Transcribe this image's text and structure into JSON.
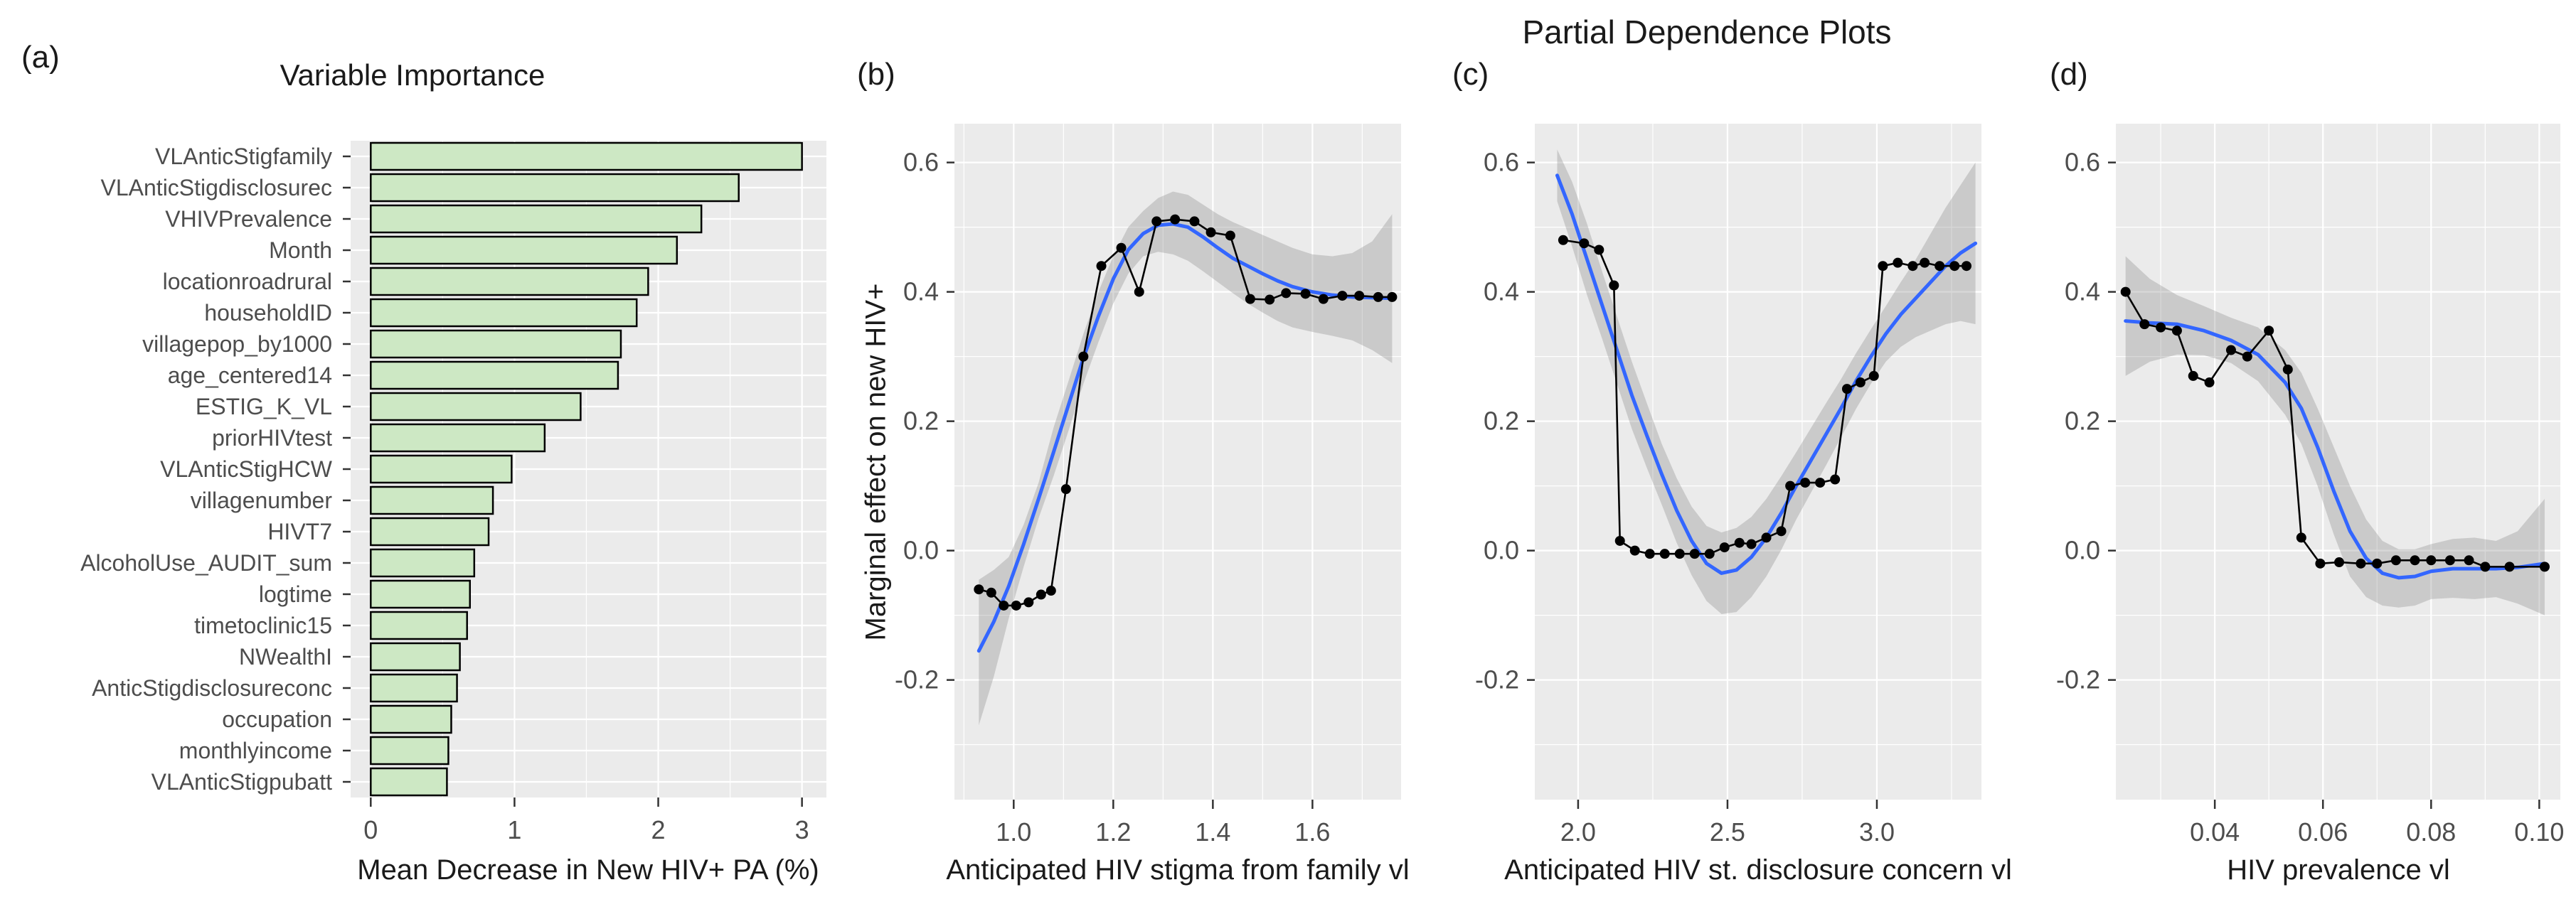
{
  "figure": {
    "title": "Partial Dependence Plots",
    "panel_letters": {
      "a": "(a)",
      "b": "(b)",
      "c": "(c)",
      "d": "(d)"
    }
  },
  "colors": {
    "panel_bg": "#ebebeb",
    "gridline": "#ffffff",
    "bar_fill": "#cde8c4",
    "bar_stroke": "#000000",
    "data_line": "#000000",
    "smooth_line": "#3366FF",
    "ci_band": "rgba(125,125,125,0.30)",
    "tick_text": "#4d4d4d",
    "tick_mark": "#333333",
    "title_text": "#1a1a1a"
  },
  "chart_data": [
    {
      "id": "a",
      "type": "bar",
      "title": "Variable Importance",
      "xlabel": "Mean Decrease in New HIV+ PA (%)",
      "ylabel": "",
      "orientation": "horizontal",
      "grid": true,
      "xlim": [
        -0.14,
        3.17
      ],
      "x_ticks": [
        0,
        1,
        2,
        3
      ],
      "x_tick_labels": [
        "0",
        "1",
        "2",
        "3"
      ],
      "categories": [
        "VLAnticStigfamily",
        "VLAnticStigdisclosurec",
        "VHIVPrevalence",
        "Month",
        "locationroadrural",
        "householdID",
        "villagepop_by1000",
        "age_centered14",
        "ESTIG_K_VL",
        "priorHIVtest",
        "VLAnticStigHCW",
        "villagenumber",
        "HIVT7",
        "AlcoholUse_AUDIT_sum",
        "logtime",
        "timetoclinic15",
        "NWealthI",
        "AnticStigdisclosureconc",
        "occupation",
        "monthlyincome",
        "VLAnticStigpubatt"
      ],
      "values": [
        3.0,
        2.56,
        2.3,
        2.13,
        1.93,
        1.85,
        1.74,
        1.72,
        1.46,
        1.21,
        0.98,
        0.85,
        0.82,
        0.72,
        0.69,
        0.67,
        0.62,
        0.6,
        0.56,
        0.54,
        0.53
      ]
    },
    {
      "id": "b",
      "type": "line",
      "title": "",
      "xlabel": "Anticipated HIV stigma from family vl",
      "ylabel": "Marginal effect on new HIV+",
      "grid": true,
      "legend": "none",
      "xlim": [
        0.881,
        1.778
      ],
      "ylim": [
        -0.385,
        0.66
      ],
      "x_ticks": [
        1.0,
        1.2,
        1.4,
        1.6
      ],
      "x_tick_labels": [
        "1.0",
        "1.2",
        "1.4",
        "1.6"
      ],
      "y_ticks": [
        -0.2,
        0.0,
        0.2,
        0.4,
        0.6
      ],
      "y_tick_labels": [
        "-0.2",
        "0.0",
        "0.2",
        "0.4",
        "0.6"
      ],
      "series": {
        "partial_dependence": {
          "x": [
            0.93,
            0.955,
            0.98,
            1.005,
            1.03,
            1.055,
            1.075,
            1.105,
            1.14,
            1.176,
            1.216,
            1.252,
            1.287,
            1.324,
            1.363,
            1.396,
            1.435,
            1.475,
            1.514,
            1.547,
            1.586,
            1.622,
            1.66,
            1.694,
            1.732,
            1.76
          ],
          "y": [
            -0.06,
            -0.065,
            -0.085,
            -0.085,
            -0.08,
            -0.068,
            -0.062,
            0.095,
            0.3,
            0.44,
            0.468,
            0.4,
            0.509,
            0.512,
            0.509,
            0.492,
            0.487,
            0.389,
            0.388,
            0.398,
            0.397,
            0.389,
            0.394,
            0.394,
            0.392,
            0.392
          ]
        },
        "smooth": {
          "x": [
            0.93,
            0.96,
            0.99,
            1.02,
            1.05,
            1.08,
            1.11,
            1.14,
            1.17,
            1.2,
            1.23,
            1.26,
            1.29,
            1.32,
            1.35,
            1.38,
            1.41,
            1.44,
            1.47,
            1.5,
            1.53,
            1.56,
            1.6,
            1.64,
            1.68,
            1.72,
            1.76
          ],
          "y": [
            -0.155,
            -0.11,
            -0.055,
            0.01,
            0.08,
            0.152,
            0.225,
            0.298,
            0.362,
            0.42,
            0.465,
            0.49,
            0.503,
            0.505,
            0.5,
            0.485,
            0.468,
            0.452,
            0.44,
            0.428,
            0.417,
            0.408,
            0.4,
            0.395,
            0.392,
            0.391,
            0.39
          ]
        },
        "ci": {
          "x": [
            0.93,
            0.96,
            0.99,
            1.02,
            1.05,
            1.08,
            1.11,
            1.14,
            1.17,
            1.2,
            1.23,
            1.26,
            1.29,
            1.32,
            1.35,
            1.38,
            1.41,
            1.44,
            1.47,
            1.5,
            1.53,
            1.56,
            1.6,
            1.64,
            1.68,
            1.72,
            1.76
          ],
          "upper": [
            -0.045,
            -0.03,
            -0.01,
            0.04,
            0.105,
            0.19,
            0.262,
            0.335,
            0.4,
            0.455,
            0.5,
            0.525,
            0.545,
            0.555,
            0.55,
            0.535,
            0.52,
            0.508,
            0.498,
            0.488,
            0.478,
            0.468,
            0.458,
            0.455,
            0.46,
            0.478,
            0.52
          ],
          "lower": [
            -0.27,
            -0.195,
            -0.105,
            -0.025,
            0.05,
            0.115,
            0.185,
            0.258,
            0.322,
            0.382,
            0.428,
            0.455,
            0.462,
            0.458,
            0.448,
            0.432,
            0.415,
            0.398,
            0.382,
            0.368,
            0.355,
            0.345,
            0.338,
            0.332,
            0.325,
            0.31,
            0.29
          ]
        }
      }
    },
    {
      "id": "c",
      "type": "line",
      "title": "",
      "xlabel": "Anticipated HIV st. disclosure concern vl",
      "ylabel": "",
      "grid": true,
      "legend": "none",
      "xlim": [
        1.855,
        3.35
      ],
      "ylim": [
        -0.385,
        0.66
      ],
      "x_ticks": [
        2.0,
        2.5,
        3.0
      ],
      "x_tick_labels": [
        "2.0",
        "2.5",
        "3.0"
      ],
      "y_ticks": [
        -0.2,
        0.0,
        0.2,
        0.4,
        0.6
      ],
      "y_tick_labels": [
        "-0.2",
        "0.0",
        "0.2",
        "0.4",
        "0.6"
      ],
      "series": {
        "partial_dependence": {
          "x": [
            1.95,
            2.02,
            2.07,
            2.12,
            2.14,
            2.19,
            2.24,
            2.29,
            2.34,
            2.39,
            2.44,
            2.49,
            2.54,
            2.58,
            2.63,
            2.68,
            2.71,
            2.76,
            2.81,
            2.86,
            2.9,
            2.945,
            2.99,
            3.02,
            3.07,
            3.12,
            3.16,
            3.21,
            3.26,
            3.3
          ],
          "y": [
            0.48,
            0.475,
            0.465,
            0.41,
            0.015,
            0.0,
            -0.005,
            -0.005,
            -0.005,
            -0.005,
            -0.005,
            0.005,
            0.012,
            0.01,
            0.02,
            0.03,
            0.1,
            0.105,
            0.105,
            0.11,
            0.25,
            0.26,
            0.27,
            0.44,
            0.445,
            0.44,
            0.445,
            0.44,
            0.44,
            0.44
          ]
        },
        "smooth": {
          "x": [
            1.93,
            1.98,
            2.03,
            2.08,
            2.13,
            2.18,
            2.23,
            2.28,
            2.33,
            2.38,
            2.43,
            2.48,
            2.53,
            2.58,
            2.63,
            2.68,
            2.73,
            2.78,
            2.83,
            2.88,
            2.93,
            2.98,
            3.03,
            3.08,
            3.13,
            3.18,
            3.23,
            3.28,
            3.33
          ],
          "y": [
            0.58,
            0.52,
            0.45,
            0.38,
            0.31,
            0.24,
            0.178,
            0.118,
            0.062,
            0.015,
            -0.02,
            -0.035,
            -0.03,
            -0.01,
            0.02,
            0.058,
            0.1,
            0.14,
            0.18,
            0.22,
            0.262,
            0.3,
            0.335,
            0.365,
            0.39,
            0.415,
            0.44,
            0.46,
            0.475
          ]
        },
        "ci": {
          "x": [
            1.93,
            1.98,
            2.03,
            2.08,
            2.13,
            2.18,
            2.23,
            2.28,
            2.33,
            2.38,
            2.43,
            2.48,
            2.53,
            2.58,
            2.63,
            2.68,
            2.73,
            2.78,
            2.83,
            2.88,
            2.93,
            2.98,
            3.03,
            3.08,
            3.13,
            3.18,
            3.23,
            3.28,
            3.33
          ],
          "upper": [
            0.62,
            0.57,
            0.505,
            0.432,
            0.362,
            0.292,
            0.228,
            0.165,
            0.112,
            0.068,
            0.038,
            0.028,
            0.035,
            0.052,
            0.08,
            0.115,
            0.152,
            0.19,
            0.228,
            0.265,
            0.305,
            0.342,
            0.378,
            0.415,
            0.45,
            0.49,
            0.53,
            0.565,
            0.6
          ],
          "lower": [
            0.54,
            0.47,
            0.395,
            0.328,
            0.258,
            0.188,
            0.128,
            0.071,
            0.012,
            -0.038,
            -0.078,
            -0.098,
            -0.095,
            -0.072,
            -0.04,
            0.001,
            0.048,
            0.09,
            0.132,
            0.175,
            0.219,
            0.258,
            0.292,
            0.315,
            0.33,
            0.34,
            0.35,
            0.355,
            0.35
          ]
        }
      }
    },
    {
      "id": "d",
      "type": "line",
      "title": "",
      "xlabel": "HIV prevalence vl",
      "ylabel": "",
      "grid": true,
      "legend": "none",
      "xlim": [
        0.0217,
        0.1039
      ],
      "ylim": [
        -0.385,
        0.66
      ],
      "x_ticks": [
        0.04,
        0.06,
        0.08,
        0.1
      ],
      "x_tick_labels": [
        "0.04",
        "0.06",
        "0.08",
        "0.10"
      ],
      "y_ticks": [
        -0.2,
        0.0,
        0.2,
        0.4,
        0.6
      ],
      "y_tick_labels": [
        "-0.2",
        "0.0",
        "0.2",
        "0.4",
        "0.6"
      ],
      "series": {
        "partial_dependence": {
          "x": [
            0.0235,
            0.027,
            0.03,
            0.033,
            0.036,
            0.039,
            0.043,
            0.046,
            0.05,
            0.0535,
            0.056,
            0.0595,
            0.063,
            0.067,
            0.07,
            0.0735,
            0.077,
            0.08,
            0.0835,
            0.087,
            0.09,
            0.0945,
            0.101
          ],
          "y": [
            0.4,
            0.35,
            0.345,
            0.34,
            0.27,
            0.26,
            0.31,
            0.3,
            0.34,
            0.28,
            0.02,
            -0.02,
            -0.018,
            -0.02,
            -0.02,
            -0.015,
            -0.015,
            -0.015,
            -0.015,
            -0.015,
            -0.025,
            -0.025,
            -0.025
          ]
        },
        "smooth": {
          "x": [
            0.0235,
            0.028,
            0.033,
            0.038,
            0.043,
            0.048,
            0.053,
            0.056,
            0.059,
            0.062,
            0.065,
            0.068,
            0.071,
            0.074,
            0.077,
            0.08,
            0.084,
            0.088,
            0.092,
            0.096,
            0.101
          ],
          "y": [
            0.355,
            0.352,
            0.35,
            0.34,
            0.325,
            0.303,
            0.26,
            0.22,
            0.16,
            0.092,
            0.03,
            -0.012,
            -0.035,
            -0.042,
            -0.04,
            -0.032,
            -0.028,
            -0.028,
            -0.028,
            -0.026,
            -0.02
          ]
        },
        "ci": {
          "x": [
            0.0235,
            0.028,
            0.033,
            0.038,
            0.043,
            0.048,
            0.053,
            0.056,
            0.059,
            0.062,
            0.065,
            0.068,
            0.071,
            0.074,
            0.077,
            0.08,
            0.084,
            0.088,
            0.092,
            0.096,
            0.101
          ],
          "upper": [
            0.455,
            0.42,
            0.395,
            0.378,
            0.36,
            0.345,
            0.31,
            0.275,
            0.22,
            0.16,
            0.1,
            0.048,
            0.015,
            0.002,
            0.002,
            0.01,
            0.018,
            0.02,
            0.015,
            0.03,
            0.08
          ],
          "lower": [
            0.27,
            0.292,
            0.303,
            0.302,
            0.29,
            0.262,
            0.21,
            0.165,
            0.1,
            0.025,
            -0.04,
            -0.072,
            -0.085,
            -0.088,
            -0.085,
            -0.075,
            -0.073,
            -0.075,
            -0.072,
            -0.082,
            -0.1
          ]
        }
      }
    }
  ]
}
